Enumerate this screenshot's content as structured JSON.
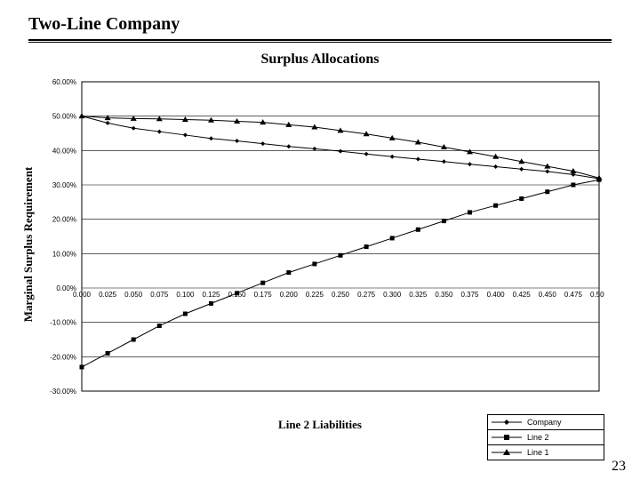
{
  "slide_title": "Two-Line Company",
  "chart_title": "Surplus Allocations",
  "y_axis_title": "Marginal Surplus Requirement",
  "x_axis_title": "Line 2 Liabilities",
  "page_number": "23",
  "chart": {
    "type": "line",
    "plot_bg": "#ffffff",
    "border_color": "#000000",
    "grid_color": "#000000",
    "line_color": "#000000",
    "line_width": 1,
    "x": {
      "min": 0.0,
      "max": 0.5,
      "ticks": [
        0.0,
        0.025,
        0.05,
        0.075,
        0.1,
        0.125,
        0.15,
        0.175,
        0.2,
        0.225,
        0.25,
        0.275,
        0.3,
        0.325,
        0.35,
        0.375,
        0.4,
        0.425,
        0.45,
        0.475,
        0.5
      ],
      "tick_labels": [
        "0.000",
        "0.025",
        "0.050",
        "0.075",
        "0.100",
        "0.125",
        "0.150",
        "0.175",
        "0.200",
        "0.225",
        "0.250",
        "0.275",
        "0.300",
        "0.325",
        "0.350",
        "0.375",
        "0.400",
        "0.425",
        "0.450",
        "0.475",
        "0.500"
      ],
      "tick_font_size": 8
    },
    "y": {
      "min": -30,
      "max": 60,
      "ticks": [
        -30,
        -20,
        -10,
        0,
        10,
        20,
        30,
        40,
        50,
        60
      ],
      "tick_labels": [
        "-30.00%",
        "-20.00%",
        "-10.00%",
        "0.00%",
        "10.00%",
        "20.00%",
        "30.00%",
        "40.00%",
        "50.00%",
        "60.00%"
      ],
      "tick_font_size": 8
    },
    "series": [
      {
        "id": "company",
        "label": "Company",
        "marker": "diamond",
        "x": [
          0.0,
          0.025,
          0.05,
          0.075,
          0.1,
          0.125,
          0.15,
          0.175,
          0.2,
          0.225,
          0.25,
          0.275,
          0.3,
          0.325,
          0.35,
          0.375,
          0.4,
          0.425,
          0.45,
          0.475,
          0.5
        ],
        "y": [
          50.0,
          48.0,
          46.5,
          45.5,
          44.5,
          43.5,
          42.8,
          42.0,
          41.2,
          40.5,
          39.8,
          39.0,
          38.2,
          37.5,
          36.8,
          36.0,
          35.3,
          34.6,
          33.9,
          33.0,
          31.8
        ]
      },
      {
        "id": "line2",
        "label": "Line 2",
        "marker": "square",
        "x": [
          0.0,
          0.025,
          0.05,
          0.075,
          0.1,
          0.125,
          0.15,
          0.175,
          0.2,
          0.225,
          0.25,
          0.275,
          0.3,
          0.325,
          0.35,
          0.375,
          0.4,
          0.425,
          0.45,
          0.475,
          0.5
        ],
        "y": [
          -23.0,
          -19.0,
          -15.0,
          -11.0,
          -7.5,
          -4.5,
          -1.5,
          1.5,
          4.5,
          7.0,
          9.5,
          12.0,
          14.5,
          17.0,
          19.5,
          22.0,
          24.0,
          26.0,
          28.0,
          30.0,
          31.5
        ]
      },
      {
        "id": "line1",
        "label": "Line 1",
        "marker": "triangle",
        "x": [
          0.0,
          0.025,
          0.05,
          0.075,
          0.1,
          0.125,
          0.15,
          0.175,
          0.2,
          0.225,
          0.25,
          0.275,
          0.3,
          0.325,
          0.35,
          0.375,
          0.4,
          0.425,
          0.45,
          0.475,
          0.5
        ],
        "y": [
          50.0,
          49.5,
          49.3,
          49.2,
          49.0,
          48.8,
          48.5,
          48.2,
          47.5,
          46.8,
          45.8,
          44.8,
          43.6,
          42.4,
          41.0,
          39.6,
          38.2,
          36.8,
          35.4,
          34.0,
          32.0
        ]
      }
    ],
    "marker_size": 5
  },
  "legend": {
    "entries": [
      {
        "series": "company",
        "label": "Company",
        "marker": "diamond"
      },
      {
        "series": "line2",
        "label": "Line 2",
        "marker": "square"
      },
      {
        "series": "line1",
        "label": "Line 1",
        "marker": "triangle"
      }
    ]
  }
}
